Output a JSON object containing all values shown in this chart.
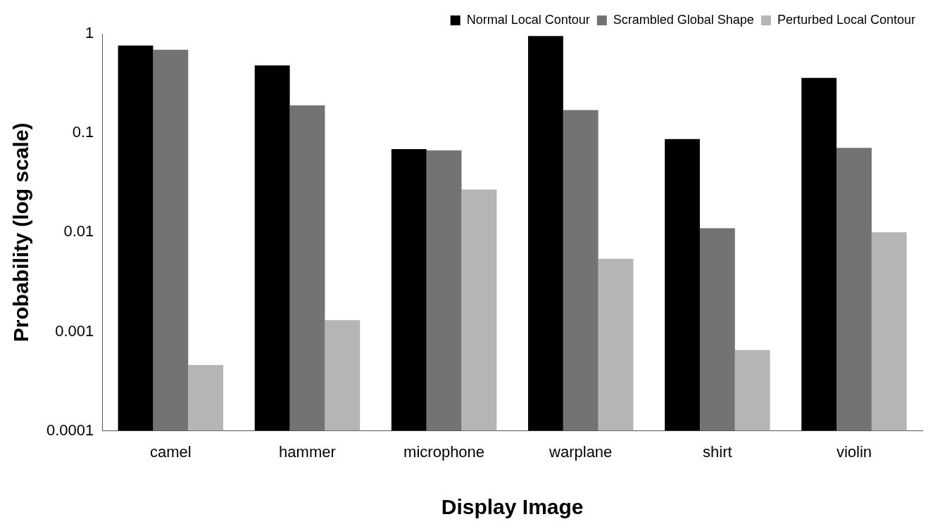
{
  "chart_data": {
    "type": "bar",
    "xlabel": "Display Image",
    "ylabel": "Probability (log scale)",
    "log": true,
    "categories": [
      "camel",
      "hammer",
      "microphone",
      "warplane",
      "shirt",
      "violin"
    ],
    "series": [
      {
        "name": "Normal Local Contour",
        "color": "#000000",
        "values": [
          0.76,
          0.48,
          0.069,
          0.95,
          0.087,
          0.36
        ]
      },
      {
        "name": "Scrambled Global Shape",
        "color": "#737373",
        "values": [
          0.69,
          0.19,
          0.067,
          0.17,
          0.011,
          0.071
        ]
      },
      {
        "name": "Perturbed Local Contour",
        "color": "#b5b5b5",
        "values": [
          0.00046,
          0.0013,
          0.027,
          0.0054,
          0.00065,
          0.01
        ]
      }
    ],
    "ylim": [
      0.0001,
      1
    ],
    "yticks": [
      {
        "value": 0.0001,
        "label": "0.0001"
      },
      {
        "value": 0.001,
        "label": "0.001"
      },
      {
        "value": 0.01,
        "label": "0.01"
      },
      {
        "value": 0.1,
        "label": "0.1"
      },
      {
        "value": 1,
        "label": "1"
      }
    ],
    "grid": false,
    "legend": "top right"
  }
}
